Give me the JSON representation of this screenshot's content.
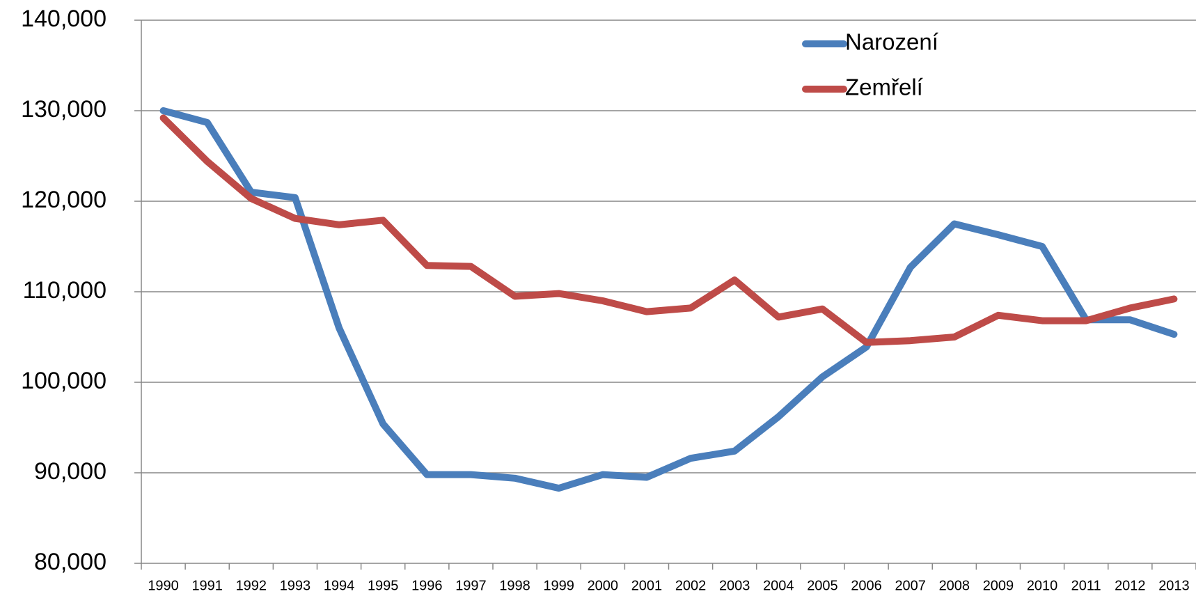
{
  "chart_data": {
    "type": "line",
    "categories": [
      "1990",
      "1991",
      "1992",
      "1993",
      "1994",
      "1995",
      "1996",
      "1997",
      "1998",
      "1999",
      "2000",
      "2001",
      "2002",
      "2003",
      "2004",
      "2005",
      "2006",
      "2007",
      "2008",
      "2009",
      "2010",
      "2011",
      "2012",
      "2013"
    ],
    "series": [
      {
        "name": "Narození",
        "color": "#4a7ebb",
        "values": [
          130000,
          128700,
          121000,
          120400,
          106000,
          95400,
          89800,
          89800,
          89400,
          88300,
          89800,
          89500,
          91600,
          92400,
          96200,
          100600,
          103900,
          112700,
          117500,
          116300,
          115000,
          106900,
          106900,
          105300
        ]
      },
      {
        "name": "Zemřelí",
        "color": "#be4b48",
        "values": [
          129200,
          124400,
          120300,
          118100,
          117400,
          117900,
          112900,
          112800,
          109500,
          109800,
          109000,
          107800,
          108200,
          111300,
          107200,
          108100,
          104400,
          104600,
          105000,
          107400,
          106800,
          106800,
          108200,
          109200
        ]
      }
    ],
    "ylim": [
      80000,
      140000
    ],
    "yticks": [
      {
        "value": 80000,
        "label": "80,000"
      },
      {
        "value": 90000,
        "label": "90,000"
      },
      {
        "value": 100000,
        "label": "100,000"
      },
      {
        "value": 110000,
        "label": "110,000"
      },
      {
        "value": 120000,
        "label": "120,000"
      },
      {
        "value": 130000,
        "label": "130,000"
      },
      {
        "value": 140000,
        "label": "140,000"
      }
    ],
    "grid": true,
    "legend": "top-right"
  }
}
